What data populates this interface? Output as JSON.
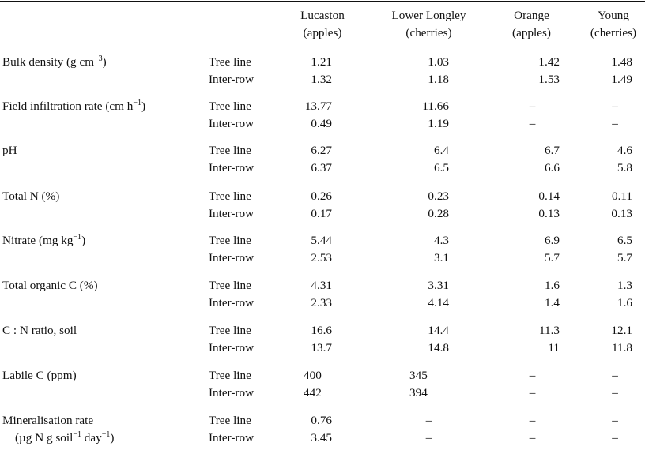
{
  "columns": [
    {
      "name": "Lucaston",
      "sub": "(apples)"
    },
    {
      "name": "Lower Longley",
      "sub": "(cherries)"
    },
    {
      "name": "Orange",
      "sub": "(apples)"
    },
    {
      "name": "Young",
      "sub": "(cherries)"
    }
  ],
  "rows": [
    {
      "label": "Bulk density (g cm",
      "sup": "−3",
      "tail": ")",
      "values": [
        [
          "Tree line",
          "1.21",
          "1.03",
          "1.42",
          "1.48"
        ],
        [
          "Inter-row",
          "1.32",
          "1.18",
          "1.53",
          "1.49"
        ]
      ]
    },
    {
      "label": "Field infiltration rate (cm h",
      "sup": "−1",
      "tail": ")",
      "values": [
        [
          "Tree line",
          "13.77",
          "11.66",
          "–",
          "–"
        ],
        [
          "Inter-row",
          "0.49",
          "1.19",
          "–",
          "–"
        ]
      ]
    },
    {
      "label": "pH",
      "sup": "",
      "tail": "",
      "values": [
        [
          "Tree line",
          "6.27",
          "6.4",
          "6.7",
          "4.6"
        ],
        [
          "Inter-row",
          "6.37",
          "6.5",
          "6.6",
          "5.8"
        ]
      ]
    },
    {
      "label": "Total N (%)",
      "sup": "",
      "tail": "",
      "values": [
        [
          "Tree line",
          "0.26",
          "0.23",
          "0.14",
          "0.11"
        ],
        [
          "Inter-row",
          "0.17",
          "0.28",
          "0.13",
          "0.13"
        ]
      ]
    },
    {
      "label": "Nitrate (mg kg",
      "sup": "−1",
      "tail": ")",
      "values": [
        [
          "Tree line",
          "5.44",
          "4.3",
          "6.9",
          "6.5"
        ],
        [
          "Inter-row",
          "2.53",
          "3.1",
          "5.7",
          "5.7"
        ]
      ]
    },
    {
      "label": "Total organic C (%)",
      "sup": "",
      "tail": "",
      "values": [
        [
          "Tree line",
          "4.31",
          "3.31",
          "1.6",
          "1.3"
        ],
        [
          "Inter-row",
          "2.33",
          "4.14",
          "1.4",
          "1.6"
        ]
      ]
    },
    {
      "label": "C : N ratio, soil",
      "sup": "",
      "tail": "",
      "values": [
        [
          "Tree line",
          "16.6",
          "14.4",
          "11.3",
          "12.1"
        ],
        [
          "Inter-row",
          "13.7",
          "14.8",
          "11",
          "11.8"
        ]
      ]
    },
    {
      "label": "Labile C (ppm)",
      "sup": "",
      "tail": "",
      "values": [
        [
          "Tree line",
          "400",
          "345",
          "–",
          "–"
        ],
        [
          "Inter-row",
          "442",
          "394",
          "–",
          "–"
        ]
      ]
    },
    {
      "label": "Mineralisation rate",
      "sup": "",
      "tail": "",
      "label2": {
        "pre": "(µg N g soil",
        "sup1": "−1",
        "mid": " day",
        "sup2": "−1",
        "post": ")"
      },
      "values": [
        [
          "Tree line",
          "0.76",
          "–",
          "–",
          "–"
        ],
        [
          "Inter-row",
          "3.45",
          "–",
          "–",
          "–"
        ]
      ]
    }
  ]
}
